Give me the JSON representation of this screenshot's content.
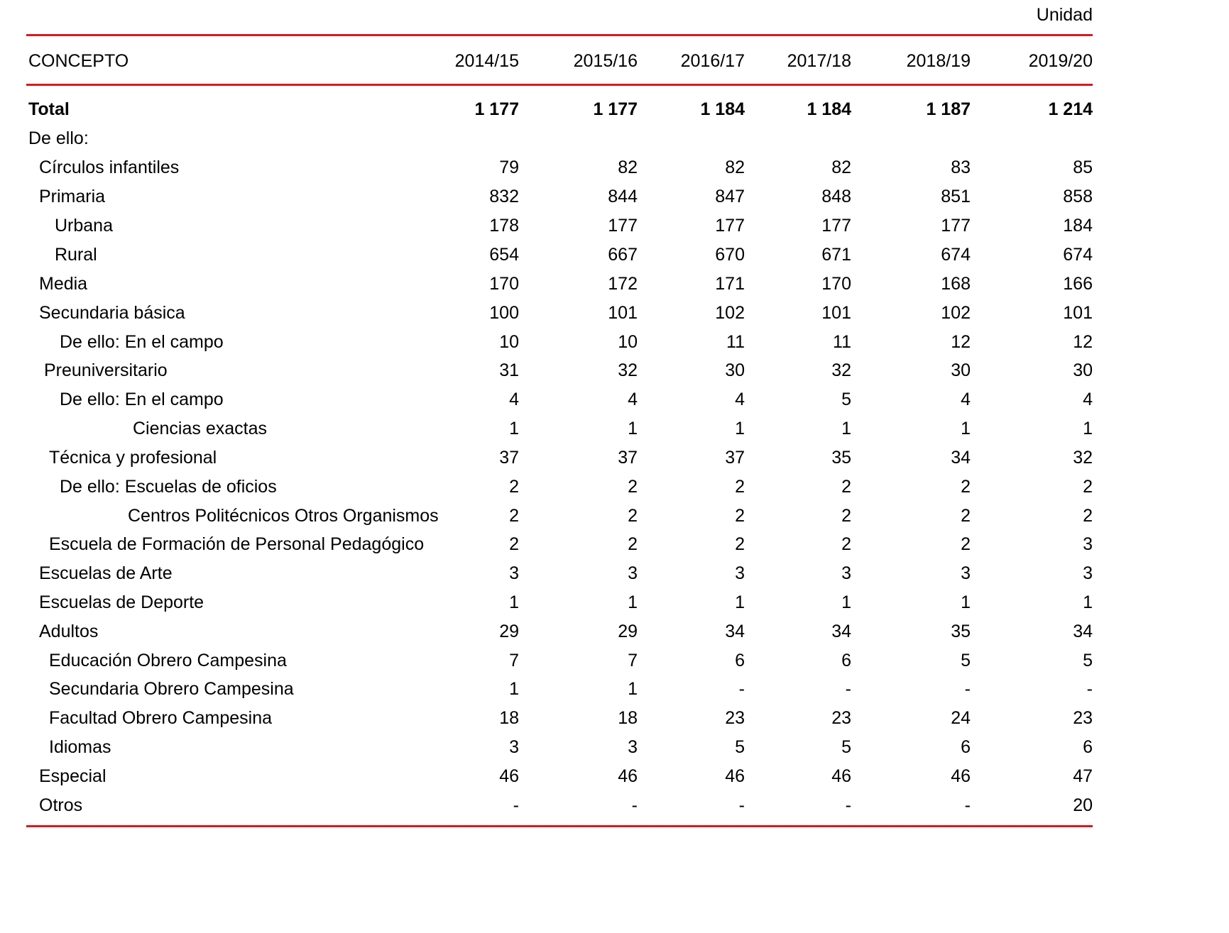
{
  "unit_label": "Unidad",
  "table": {
    "header": {
      "concept": "CONCEPTO",
      "years": [
        "2014/15",
        "2015/16",
        "2016/17",
        "2017/18",
        "2018/19",
        "2019/20"
      ]
    },
    "rows": [
      {
        "concept": "Total",
        "values": [
          "1 177",
          "1 177",
          "1 184",
          "1 184",
          "1 187",
          "1 214"
        ]
      },
      {
        "concept": "De ello:",
        "values": [
          "",
          "",
          "",
          "",
          "",
          ""
        ]
      },
      {
        "concept": "Círculos infantiles",
        "values": [
          "79",
          "82",
          "82",
          "82",
          "83",
          "85"
        ]
      },
      {
        "concept": "Primaria",
        "values": [
          "832",
          "844",
          "847",
          "848",
          "851",
          "858"
        ]
      },
      {
        "concept": "Urbana",
        "values": [
          "178",
          "177",
          "177",
          "177",
          "177",
          "184"
        ]
      },
      {
        "concept": "Rural",
        "values": [
          "654",
          "667",
          "670",
          "671",
          "674",
          "674"
        ]
      },
      {
        "concept": "Media",
        "values": [
          "170",
          "172",
          "171",
          "170",
          "168",
          "166"
        ]
      },
      {
        "concept": "Secundaria básica",
        "values": [
          "100",
          "101",
          "102",
          "101",
          "102",
          "101"
        ]
      },
      {
        "concept": "De ello: En el campo",
        "values": [
          "10",
          "10",
          "11",
          "11",
          "12",
          "12"
        ]
      },
      {
        "concept": "Preuniversitario",
        "values": [
          "31",
          "32",
          "30",
          "32",
          "30",
          "30"
        ]
      },
      {
        "concept": "De ello: En el campo",
        "values": [
          "4",
          "4",
          "4",
          "5",
          "4",
          "4"
        ]
      },
      {
        "concept": "Ciencias exactas",
        "values": [
          "1",
          "1",
          "1",
          "1",
          "1",
          "1"
        ]
      },
      {
        "concept": "Técnica y profesional",
        "values": [
          "37",
          "37",
          "37",
          "35",
          "34",
          "32"
        ]
      },
      {
        "concept": "De ello: Escuelas de oficios",
        "values": [
          "2",
          "2",
          "2",
          "2",
          "2",
          "2"
        ]
      },
      {
        "concept": "Centros Politécnicos Otros Organismos",
        "values": [
          "2",
          "2",
          "2",
          "2",
          "2",
          "2"
        ]
      },
      {
        "concept": "Escuela de Formación de Personal Pedagógico",
        "values": [
          "2",
          "2",
          "2",
          "2",
          "2",
          "3"
        ]
      },
      {
        "concept": "Escuelas de Arte",
        "values": [
          "3",
          "3",
          "3",
          "3",
          "3",
          "3"
        ]
      },
      {
        "concept": "Escuelas de Deporte",
        "values": [
          "1",
          "1",
          "1",
          "1",
          "1",
          "1"
        ]
      },
      {
        "concept": "Adultos",
        "values": [
          "29",
          "29",
          "34",
          "34",
          "35",
          "34"
        ]
      },
      {
        "concept": "Educación Obrero Campesina",
        "values": [
          "7",
          "7",
          "6",
          "6",
          "5",
          "5"
        ]
      },
      {
        "concept": "Secundaria Obrero Campesina",
        "values": [
          "1",
          "1",
          "-",
          "-",
          "-",
          "-"
        ]
      },
      {
        "concept": "Facultad Obrero Campesina",
        "values": [
          "18",
          "18",
          "23",
          "23",
          "24",
          "23"
        ]
      },
      {
        "concept": "Idiomas",
        "values": [
          "3",
          "3",
          "5",
          "5",
          "6",
          "6"
        ]
      },
      {
        "concept": "Especial",
        "values": [
          "46",
          "46",
          "46",
          "46",
          "46",
          "47"
        ]
      },
      {
        "concept": "Otros",
        "values": [
          "-",
          "-",
          "-",
          "-",
          "-",
          "20"
        ]
      }
    ]
  },
  "colors": {
    "rule": "#d71920",
    "text": "#000000",
    "background": "#ffffff"
  }
}
